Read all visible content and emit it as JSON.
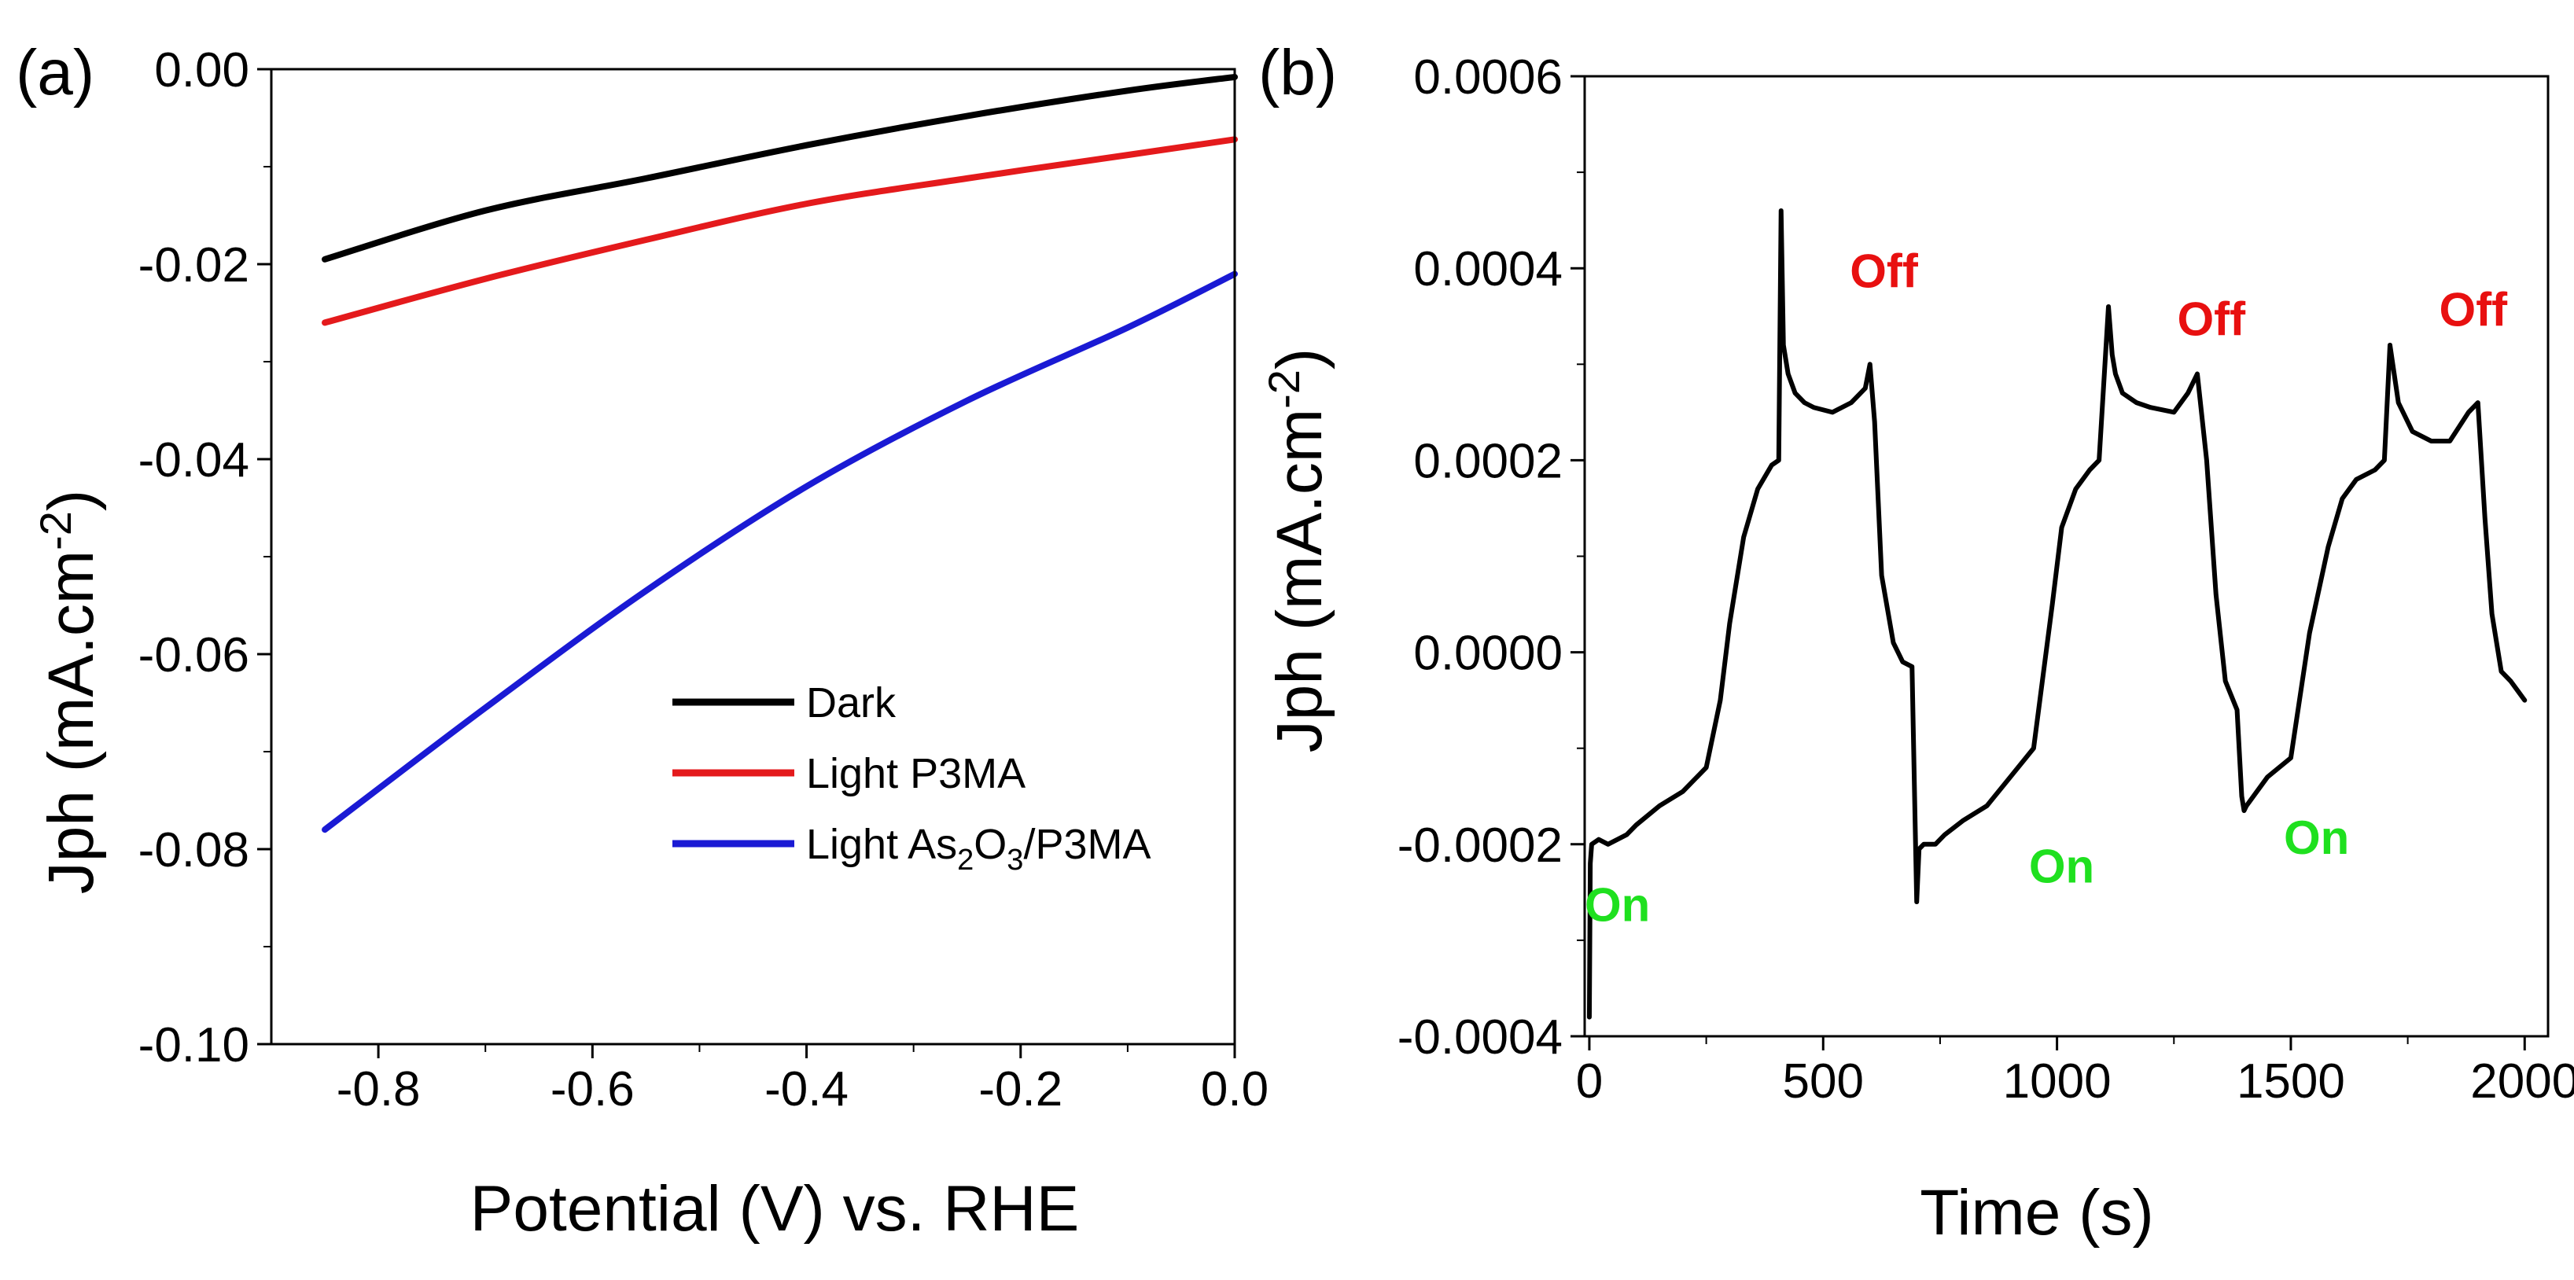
{
  "colors": {
    "dark": "#000000",
    "p3ma": "#e41a1c",
    "as2o3": "#1a1ad4",
    "on": "#1fe01f",
    "off": "#e81010"
  },
  "chart_data": [
    {
      "type": "line",
      "panel_label": "(a)",
      "xlabel": "Potential (V) vs. RHE",
      "ylabel": "Jph (mA.cm",
      "ylabel_sup": "-2",
      "ylabel_close": ")",
      "xlim": [
        -0.9,
        0.0
      ],
      "ylim": [
        -0.1,
        0.0
      ],
      "x_ticks": [
        -0.8,
        -0.6,
        -0.4,
        -0.2,
        0.0
      ],
      "x_tick_labels": [
        "-0.8",
        "-0.6",
        "-0.4",
        "-0.2",
        "0.0"
      ],
      "y_ticks": [
        0.0,
        -0.02,
        -0.04,
        -0.06,
        -0.08,
        -0.1
      ],
      "y_tick_labels": [
        "0.00",
        "-0.02",
        "-0.04",
        "-0.06",
        "-0.08",
        "-0.10"
      ],
      "legend_position": "bottom-right",
      "legend_as2o3": {
        "prefix": "Light As",
        "sub1": "2",
        "mid": "O",
        "sub2": "3",
        "suffix": "/P3MA"
      },
      "series": [
        {
          "name": "Dark",
          "color_key": "dark",
          "x": [
            -0.85,
            -0.7,
            -0.55,
            -0.4,
            -0.25,
            -0.1,
            0.0
          ],
          "y": [
            -0.0195,
            -0.0145,
            -0.0112,
            -0.0078,
            -0.0048,
            -0.0022,
            -0.0008
          ]
        },
        {
          "name": "Light P3MA",
          "color_key": "p3ma",
          "x": [
            -0.85,
            -0.7,
            -0.55,
            -0.4,
            -0.25,
            -0.1,
            0.0
          ],
          "y": [
            -0.026,
            -0.0215,
            -0.0175,
            -0.0138,
            -0.0112,
            -0.0088,
            -0.0072
          ]
        },
        {
          "name": "Light As2O3/P3MA",
          "color_key": "as2o3",
          "x": [
            -0.85,
            -0.7,
            -0.55,
            -0.4,
            -0.25,
            -0.1,
            0.0
          ],
          "y": [
            -0.078,
            -0.0655,
            -0.0535,
            -0.0428,
            -0.034,
            -0.0265,
            -0.021
          ]
        }
      ]
    },
    {
      "type": "line",
      "panel_label": "(b)",
      "xlabel": "Time (s)",
      "ylabel": "Jph (mA.cm",
      "ylabel_sup": "-2",
      "ylabel_close": ")",
      "xlim": [
        -10,
        2050
      ],
      "ylim": [
        -0.0004,
        0.0006
      ],
      "x_ticks": [
        0,
        500,
        1000,
        1500,
        2000
      ],
      "x_tick_labels": [
        "0",
        "500",
        "1000",
        "1500",
        "2000"
      ],
      "y_ticks": [
        0.0006,
        0.0004,
        0.0002,
        0.0,
        -0.0002,
        -0.0004
      ],
      "y_tick_labels": [
        "0.0006",
        "0.0004",
        "0.0002",
        "0.0000",
        "-0.0002",
        "-0.0004"
      ],
      "series": [
        {
          "name": "Jph",
          "color_key": "dark",
          "x": [
            0,
            2,
            5,
            20,
            40,
            60,
            80,
            100,
            150,
            200,
            250,
            280,
            300,
            330,
            360,
            390,
            405,
            410,
            415,
            425,
            440,
            460,
            480,
            520,
            560,
            590,
            600,
            610,
            625,
            650,
            670,
            690,
            700,
            705,
            715,
            740,
            760,
            800,
            850,
            900,
            950,
            990,
            1010,
            1040,
            1070,
            1090,
            1110,
            1118,
            1125,
            1140,
            1170,
            1200,
            1250,
            1280,
            1300,
            1320,
            1340,
            1360,
            1385,
            1395,
            1400,
            1405,
            1420,
            1450,
            1500,
            1540,
            1580,
            1610,
            1640,
            1680,
            1700,
            1712,
            1718,
            1730,
            1760,
            1800,
            1840,
            1880,
            1900,
            1915,
            1930,
            1950,
            1970,
            1985,
            2000
          ],
          "y": [
            -0.00038,
            -0.00022,
            -0.0002,
            -0.000195,
            -0.0002,
            -0.000195,
            -0.00019,
            -0.00018,
            -0.00016,
            -0.000145,
            -0.00012,
            -5e-05,
            3e-05,
            0.00012,
            0.00017,
            0.000195,
            0.0002,
            0.00046,
            0.00032,
            0.00029,
            0.00027,
            0.00026,
            0.000255,
            0.00025,
            0.00026,
            0.000275,
            0.0003,
            0.00024,
            8e-05,
            1e-05,
            -1e-05,
            -1.5e-05,
            -0.00026,
            -0.000205,
            -0.0002,
            -0.0002,
            -0.00019,
            -0.000175,
            -0.00016,
            -0.00013,
            -0.0001,
            5e-05,
            0.00013,
            0.00017,
            0.00019,
            0.0002,
            0.00036,
            0.00031,
            0.00029,
            0.00027,
            0.00026,
            0.000255,
            0.00025,
            0.00027,
            0.00029,
            0.0002,
            6e-05,
            -3e-05,
            -6e-05,
            -0.00015,
            -0.000165,
            -0.00016,
            -0.00015,
            -0.00013,
            -0.00011,
            2e-05,
            0.00011,
            0.00016,
            0.00018,
            0.00019,
            0.0002,
            0.00032,
            0.0003,
            0.00026,
            0.00023,
            0.00022,
            0.00022,
            0.00025,
            0.00026,
            0.00014,
            4e-05,
            -2e-05,
            -3e-05,
            -4e-05,
            -5e-05
          ]
        }
      ],
      "annotations": [
        {
          "text": "On",
          "x": 60,
          "y": -0.00028,
          "color_key": "on"
        },
        {
          "text": "Off",
          "x": 630,
          "y": 0.00038,
          "color_key": "off"
        },
        {
          "text": "On",
          "x": 1010,
          "y": -0.00024,
          "color_key": "on"
        },
        {
          "text": "Off",
          "x": 1330,
          "y": 0.00033,
          "color_key": "off"
        },
        {
          "text": "On",
          "x": 1555,
          "y": -0.00021,
          "color_key": "on"
        },
        {
          "text": "Off",
          "x": 1890,
          "y": 0.00034,
          "color_key": "off"
        }
      ]
    }
  ]
}
